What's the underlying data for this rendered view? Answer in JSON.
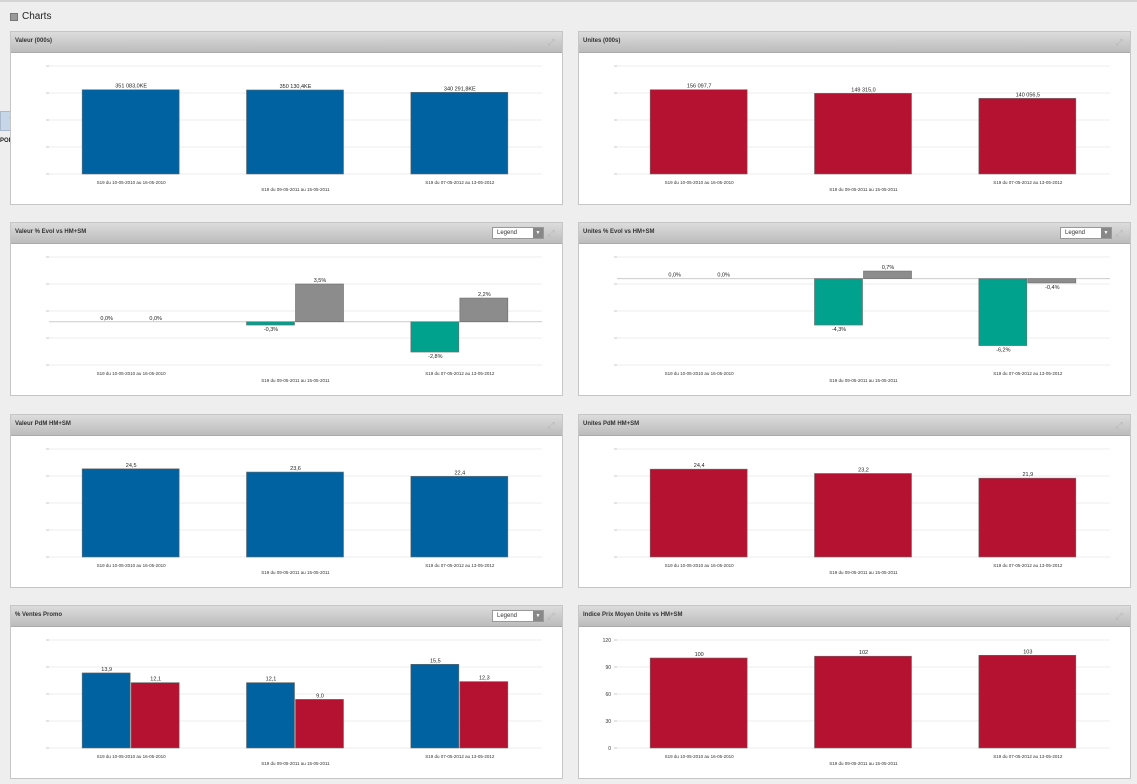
{
  "page": {
    "title": "Charts",
    "side_tab_label": "PORT"
  },
  "chart_data": [
    {
      "id": "valeur",
      "type": "bar",
      "title": "Valeur (000s)",
      "legend_button": null,
      "categories": [
        "S19 du 10-05-2010 au 16-05-2010",
        "S19 du 09-05-2011 au 15-05-2011",
        "S19 du 07-05-2012 au 13-05-2012"
      ],
      "series": [
        {
          "values": [
            351083.0,
            350130.4,
            340291.8
          ],
          "labels": [
            "351 083,0KE",
            "350 130,4KE",
            "340 291,8KE"
          ],
          "color": "#0062a0"
        }
      ],
      "ylim": [
        0,
        450000
      ],
      "gridlines": 5,
      "show_ytick_labels": false
    },
    {
      "id": "unites",
      "type": "bar",
      "title": "Unites (000s)",
      "legend_button": null,
      "categories": [
        "S19 du 10-05-2010 au 16-05-2010",
        "S19 du 09-05-2011 au 15-05-2011",
        "S19 du 07-05-2012 au 13-05-2012"
      ],
      "series": [
        {
          "values": [
            156097.7,
            149315.0,
            140056.5
          ],
          "labels": [
            "156 097,7",
            "149 315,0",
            "140 056,5"
          ],
          "color": "#b51231"
        }
      ],
      "ylim": [
        0,
        200000
      ],
      "gridlines": 5,
      "show_ytick_labels": false
    },
    {
      "id": "valeur-evol",
      "type": "bar",
      "title": "Valeur % Evol vs HM+SM",
      "legend_button": "Legend",
      "categories": [
        "S19 du 10-05-2010 au 16-05-2010",
        "S19 du 09-05-2011 au 15-05-2011",
        "S19 du 07-05-2012 au 13-05-2012"
      ],
      "series": [
        {
          "values": [
            0.0,
            -0.3,
            -2.8
          ],
          "labels": [
            "0,0%",
            "-0,3%",
            "-2,8%"
          ],
          "color": "#00a28e"
        },
        {
          "values": [
            0.0,
            3.5,
            2.2
          ],
          "labels": [
            "0,0%",
            "3,5%",
            "2,2%"
          ],
          "color": "#8c8c8c"
        }
      ],
      "ylim": [
        -4,
        6
      ],
      "gridlines": 5,
      "show_ytick_labels": false
    },
    {
      "id": "unites-evol",
      "type": "bar",
      "title": "Unites % Evol vs HM+SM",
      "legend_button": "Legend",
      "categories": [
        "S19 du 10-05-2010 au 16-05-2010",
        "S19 du 09-05-2011 au 15-05-2011",
        "S19 du 07-05-2012 au 13-05-2012"
      ],
      "series": [
        {
          "values": [
            0.0,
            -4.3,
            -6.2
          ],
          "labels": [
            "0,0%",
            "-4,3%",
            "-6,2%"
          ],
          "color": "#00a28e"
        },
        {
          "values": [
            0.0,
            0.7,
            -0.4
          ],
          "labels": [
            "0,0%",
            "0,7%",
            "-0,4%"
          ],
          "color": "#8c8c8c"
        }
      ],
      "ylim": [
        -8,
        2
      ],
      "gridlines": 5,
      "show_ytick_labels": false
    },
    {
      "id": "valeur-pdm",
      "type": "bar",
      "title": "Valeur PdM HM+SM",
      "legend_button": null,
      "categories": [
        "S19 du 10-05-2010 au 16-05-2010",
        "S19 du 09-05-2011 au 15-05-2011",
        "S19 du 07-05-2012 au 13-05-2012"
      ],
      "series": [
        {
          "values": [
            24.5,
            23.6,
            22.4
          ],
          "labels": [
            "24,5",
            "23,6",
            "22,4"
          ],
          "color": "#0062a0"
        }
      ],
      "ylim": [
        0,
        30
      ],
      "gridlines": 5,
      "show_ytick_labels": false
    },
    {
      "id": "unites-pdm",
      "type": "bar",
      "title": "Unites PdM HM+SM",
      "legend_button": null,
      "categories": [
        "S19 du 10-05-2010 au 16-05-2010",
        "S19 du 09-05-2011 au 15-05-2011",
        "S19 du 07-05-2012 au 13-05-2012"
      ],
      "series": [
        {
          "values": [
            24.4,
            23.2,
            21.9
          ],
          "labels": [
            "24,4",
            "23,2",
            "21,9"
          ],
          "color": "#b51231"
        }
      ],
      "ylim": [
        0,
        30
      ],
      "gridlines": 5,
      "show_ytick_labels": false
    },
    {
      "id": "ventes-promo",
      "type": "bar",
      "title": "% Ventes Promo",
      "legend_button": "Legend",
      "categories": [
        "S19 du 10-05-2010 au 16-05-2010",
        "S19 du 09-05-2011 au 15-05-2011",
        "S19 du 07-05-2012 au 13-05-2012"
      ],
      "series": [
        {
          "values": [
            13.9,
            12.1,
            15.5
          ],
          "labels": [
            "13,9",
            "12,1",
            "15,5"
          ],
          "color": "#0062a0"
        },
        {
          "values": [
            12.1,
            9.0,
            12.3
          ],
          "labels": [
            "12,1",
            "9,0",
            "12,3"
          ],
          "color": "#b51231"
        }
      ],
      "ylim": [
        0,
        20
      ],
      "gridlines": 5,
      "show_ytick_labels": false
    },
    {
      "id": "indice-prix",
      "type": "bar",
      "title": "Indice Prix Moyen Unite vs HM+SM",
      "legend_button": null,
      "categories": [
        "S19 du 10-05-2010 au 16-05-2010",
        "S19 du 09-05-2011 au 15-05-2011",
        "S19 du 07-05-2012 au 13-05-2012"
      ],
      "series": [
        {
          "values": [
            100,
            102,
            103
          ],
          "labels": [
            "100",
            "102",
            "103"
          ],
          "color": "#b51231"
        }
      ],
      "ylim": [
        0,
        120
      ],
      "ticks": [
        "0",
        "30",
        "60",
        "90",
        "120"
      ],
      "gridlines": 5,
      "show_ytick_labels": true
    }
  ]
}
